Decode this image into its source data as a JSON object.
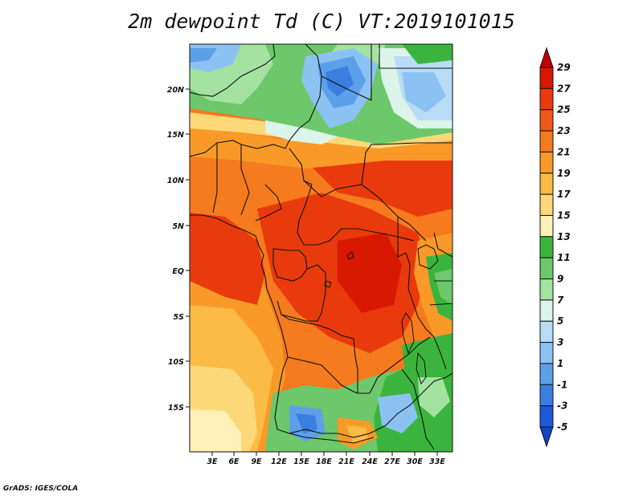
{
  "title": "2m dewpoint Td (C) VT:2019101015",
  "credit": "GrADS: IGES/COLA",
  "map": {
    "lon_range": [
      0,
      36
    ],
    "lat_range": [
      -20,
      25
    ],
    "lat_labels": [
      "20N",
      "15N",
      "10N",
      "5N",
      "EQ",
      "5S",
      "10S",
      "15S"
    ],
    "lon_labels": [
      "3E",
      "6E",
      "9E",
      "12E",
      "15E",
      "18E",
      "21E",
      "24E",
      "27E",
      "30E",
      "33E"
    ]
  },
  "colorbar": {
    "labels": [
      "29",
      "27",
      "25",
      "23",
      "21",
      "19",
      "17",
      "15",
      "13",
      "11",
      "9",
      "7",
      "5",
      "3",
      "1",
      "-1",
      "-3",
      "-5"
    ],
    "colors": [
      "#c40000",
      "#d81800",
      "#e83a0c",
      "#f05818",
      "#f67a1e",
      "#f99a28",
      "#fbbb44",
      "#fcd878",
      "#fdf0b8",
      "#3ab43c",
      "#6cc86a",
      "#a4e2a0",
      "#dcf4ea",
      "#b8dcf6",
      "#8cc2f2",
      "#5ca0ea",
      "#3a7ee0",
      "#1e5ad6",
      "#1144c8"
    ]
  }
}
